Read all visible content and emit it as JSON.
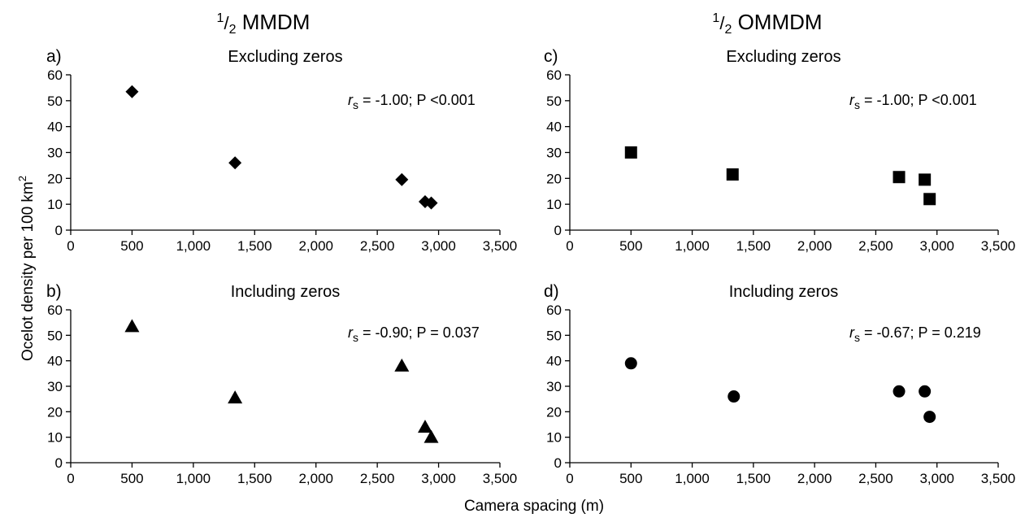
{
  "figure": {
    "column_titles": [
      {
        "prefix_sup": "1",
        "prefix_sub": "2",
        "text": " MMDM"
      },
      {
        "prefix_sup": "1",
        "prefix_sub": "2",
        "text": " OMMDM"
      }
    ],
    "xlabel": "Camera spacing (m)",
    "ylabel_main": "Ocelot density per 100 km",
    "ylabel_sup": "2"
  },
  "chart_data": [
    {
      "type": "scatter",
      "panel_label": "a)",
      "title": "Excluding zeros",
      "marker": "diamond",
      "annotation": {
        "r_symbol": "r",
        "r_sub": "s",
        "text": " = -1.00; P <0.001"
      },
      "xlim": [
        0,
        3500
      ],
      "ylim": [
        0,
        60
      ],
      "xticks": [
        0,
        500,
        1000,
        1500,
        2000,
        2500,
        3000,
        3500
      ],
      "xtick_labels": [
        "0",
        "500",
        "1,000",
        "1,500",
        "2,000",
        "2,500",
        "3,000",
        "3,500"
      ],
      "yticks": [
        0,
        10,
        20,
        30,
        40,
        50,
        60
      ],
      "ytick_labels": [
        "0",
        "10",
        "20",
        "30",
        "40",
        "50",
        "60"
      ],
      "x": [
        500,
        1340,
        2700,
        2890,
        2940
      ],
      "y": [
        53.5,
        26,
        19.5,
        11,
        10.5
      ]
    },
    {
      "type": "scatter",
      "panel_label": "b)",
      "title": "Including zeros",
      "marker": "triangle",
      "annotation": {
        "r_symbol": "r",
        "r_sub": "s",
        "text": " = -0.90; P = 0.037"
      },
      "xlim": [
        0,
        3500
      ],
      "ylim": [
        0,
        60
      ],
      "xticks": [
        0,
        500,
        1000,
        1500,
        2000,
        2500,
        3000,
        3500
      ],
      "xtick_labels": [
        "0",
        "500",
        "1,000",
        "1,500",
        "2,000",
        "2,500",
        "3,000",
        "3,500"
      ],
      "yticks": [
        0,
        10,
        20,
        30,
        40,
        50,
        60
      ],
      "ytick_labels": [
        "0",
        "10",
        "20",
        "30",
        "40",
        "50",
        "60"
      ],
      "x": [
        500,
        1340,
        2700,
        2890,
        2940
      ],
      "y": [
        53.5,
        25.5,
        38,
        14,
        10
      ]
    },
    {
      "type": "scatter",
      "panel_label": "c)",
      "title": "Excluding zeros",
      "marker": "square",
      "annotation": {
        "r_symbol": "r",
        "r_sub": "s",
        "text": " = -1.00; P <0.001"
      },
      "xlim": [
        0,
        3500
      ],
      "ylim": [
        0,
        60
      ],
      "xticks": [
        0,
        500,
        1000,
        1500,
        2000,
        2500,
        3000,
        3500
      ],
      "xtick_labels": [
        "0",
        "500",
        "1,000",
        "1,500",
        "2,000",
        "2,500",
        "3,000",
        "3,500"
      ],
      "yticks": [
        0,
        10,
        20,
        30,
        40,
        50,
        60
      ],
      "ytick_labels": [
        "0",
        "10",
        "20",
        "30",
        "40",
        "50",
        "60"
      ],
      "x": [
        500,
        1330,
        2690,
        2900,
        2940
      ],
      "y": [
        30,
        21.5,
        20.5,
        19.5,
        12
      ]
    },
    {
      "type": "scatter",
      "panel_label": "d)",
      "title": "Including zeros",
      "marker": "circle",
      "annotation": {
        "r_symbol": "r",
        "r_sub": "s",
        "text": " = -0.67; P = 0.219"
      },
      "xlim": [
        0,
        3500
      ],
      "ylim": [
        0,
        60
      ],
      "xticks": [
        0,
        500,
        1000,
        1500,
        2000,
        2500,
        3000,
        3500
      ],
      "xtick_labels": [
        "0",
        "500",
        "1,000",
        "1,500",
        "2,000",
        "2,500",
        "3,000",
        "3,500"
      ],
      "yticks": [
        0,
        10,
        20,
        30,
        40,
        50,
        60
      ],
      "ytick_labels": [
        "0",
        "10",
        "20",
        "30",
        "40",
        "50",
        "60"
      ],
      "x": [
        500,
        1340,
        2690,
        2900,
        2940
      ],
      "y": [
        39,
        26,
        28,
        28,
        18
      ]
    }
  ]
}
